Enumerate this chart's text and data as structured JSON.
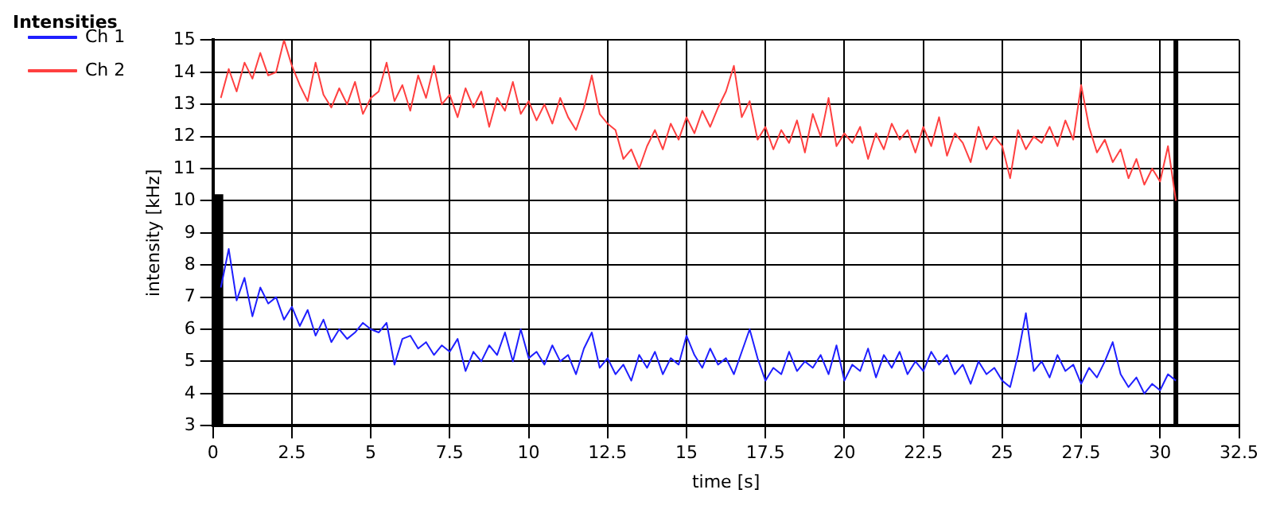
{
  "chart_data": {
    "type": "line",
    "title": "Intensities",
    "xlabel": "time [s]",
    "ylabel": "intensity [kHz]",
    "x": [
      0.25,
      0.5,
      0.75,
      1,
      1.25,
      1.5,
      1.75,
      2,
      2.25,
      2.5,
      2.75,
      3,
      3.25,
      3.5,
      3.75,
      4,
      4.25,
      4.5,
      4.75,
      5,
      5.25,
      5.5,
      5.75,
      6,
      6.25,
      6.5,
      6.75,
      7,
      7.25,
      7.5,
      7.75,
      8,
      8.25,
      8.5,
      8.75,
      9,
      9.25,
      9.5,
      9.75,
      10,
      10.25,
      10.5,
      10.75,
      11,
      11.25,
      11.5,
      11.75,
      12,
      12.25,
      12.5,
      12.75,
      13,
      13.25,
      13.5,
      13.75,
      14,
      14.25,
      14.5,
      14.75,
      15,
      15.25,
      15.5,
      15.75,
      16,
      16.25,
      16.5,
      16.75,
      17,
      17.25,
      17.5,
      17.75,
      18,
      18.25,
      18.5,
      18.75,
      19,
      19.25,
      19.5,
      19.75,
      20,
      20.25,
      20.5,
      20.75,
      21,
      21.25,
      21.5,
      21.75,
      22,
      22.25,
      22.5,
      22.75,
      23,
      23.25,
      23.5,
      23.75,
      24,
      24.25,
      24.5,
      24.75,
      25,
      25.25,
      25.5,
      25.75,
      26,
      26.25,
      26.5,
      26.75,
      27,
      27.25,
      27.5,
      27.75,
      28,
      28.25,
      28.5,
      28.75,
      29,
      29.25,
      29.5,
      29.75,
      30,
      30.25,
      30.5
    ],
    "series": [
      {
        "name": "Ch 1",
        "color": "#1f1fff",
        "values": [
          7.3,
          8.5,
          6.9,
          7.6,
          6.4,
          7.3,
          6.8,
          7.0,
          6.3,
          6.7,
          6.1,
          6.6,
          5.8,
          6.3,
          5.6,
          6.0,
          5.7,
          5.9,
          6.2,
          6.0,
          5.9,
          6.2,
          4.9,
          5.7,
          5.8,
          5.4,
          5.6,
          5.2,
          5.5,
          5.3,
          5.7,
          4.7,
          5.3,
          5.0,
          5.5,
          5.2,
          5.9,
          5.0,
          6.0,
          5.1,
          5.3,
          4.9,
          5.5,
          5.0,
          5.2,
          4.6,
          5.4,
          5.9,
          4.8,
          5.1,
          4.6,
          4.9,
          4.4,
          5.2,
          4.8,
          5.3,
          4.6,
          5.1,
          4.9,
          5.8,
          5.2,
          4.8,
          5.4,
          4.9,
          5.1,
          4.6,
          5.3,
          6.0,
          5.1,
          4.4,
          4.8,
          4.6,
          5.3,
          4.7,
          5.0,
          4.8,
          5.2,
          4.6,
          5.5,
          4.4,
          4.9,
          4.7,
          5.4,
          4.5,
          5.2,
          4.8,
          5.3,
          4.6,
          5.0,
          4.7,
          5.3,
          4.9,
          5.2,
          4.6,
          4.9,
          4.3,
          5.0,
          4.6,
          4.8,
          4.4,
          4.2,
          5.2,
          6.5,
          4.7,
          5.0,
          4.5,
          5.2,
          4.7,
          4.9,
          4.3,
          4.8,
          4.5,
          5.0,
          5.6,
          4.6,
          4.2,
          4.5,
          4.0,
          4.3,
          4.1,
          4.6,
          4.4
        ]
      },
      {
        "name": "Ch 2",
        "color": "#ff4040",
        "values": [
          13.2,
          14.1,
          13.4,
          14.3,
          13.8,
          14.6,
          13.9,
          14.0,
          15.0,
          14.2,
          13.6,
          13.1,
          14.3,
          13.3,
          12.9,
          13.5,
          13.0,
          13.7,
          12.7,
          13.2,
          13.4,
          14.3,
          13.1,
          13.6,
          12.8,
          13.9,
          13.2,
          14.2,
          13.0,
          13.3,
          12.6,
          13.5,
          12.9,
          13.4,
          12.3,
          13.2,
          12.8,
          13.7,
          12.7,
          13.1,
          12.5,
          13.0,
          12.4,
          13.2,
          12.6,
          12.2,
          12.9,
          13.9,
          12.7,
          12.4,
          12.2,
          11.3,
          11.6,
          11.0,
          11.7,
          12.2,
          11.6,
          12.4,
          11.9,
          12.6,
          12.1,
          12.8,
          12.3,
          12.9,
          13.4,
          14.2,
          12.6,
          13.1,
          11.9,
          12.3,
          11.6,
          12.2,
          11.8,
          12.5,
          11.5,
          12.7,
          12.0,
          13.2,
          11.7,
          12.1,
          11.8,
          12.3,
          11.3,
          12.1,
          11.6,
          12.4,
          11.9,
          12.2,
          11.5,
          12.3,
          11.7,
          12.6,
          11.4,
          12.1,
          11.8,
          11.2,
          12.3,
          11.6,
          12.0,
          11.7,
          10.7,
          12.2,
          11.6,
          12.0,
          11.8,
          12.3,
          11.7,
          12.5,
          11.9,
          13.6,
          12.3,
          11.5,
          11.9,
          11.2,
          11.6,
          10.7,
          11.3,
          10.5,
          11.0,
          10.6,
          11.7,
          10.0
        ]
      },
      {
        "color": "#000000",
        "x": [
          0.15,
          0.15
        ],
        "values": [
          3,
          10.2
        ]
      }
    ],
    "xlim": [
      0,
      32.5
    ],
    "xticks": [
      0,
      2.5,
      5,
      7.5,
      10,
      12.5,
      15,
      17.5,
      20,
      22.5,
      25,
      27.5,
      30,
      32.5
    ],
    "ylim": [
      3,
      15
    ],
    "yticks": [
      3,
      4,
      5,
      6,
      7,
      8,
      9,
      10,
      11,
      12,
      13,
      14,
      15
    ],
    "ref_lines": [
      {
        "axis": "x",
        "value": 30.5,
        "color": "#000000"
      }
    ],
    "grid": true,
    "legend": "top left",
    "marker": "none",
    "line_style": "solid"
  }
}
